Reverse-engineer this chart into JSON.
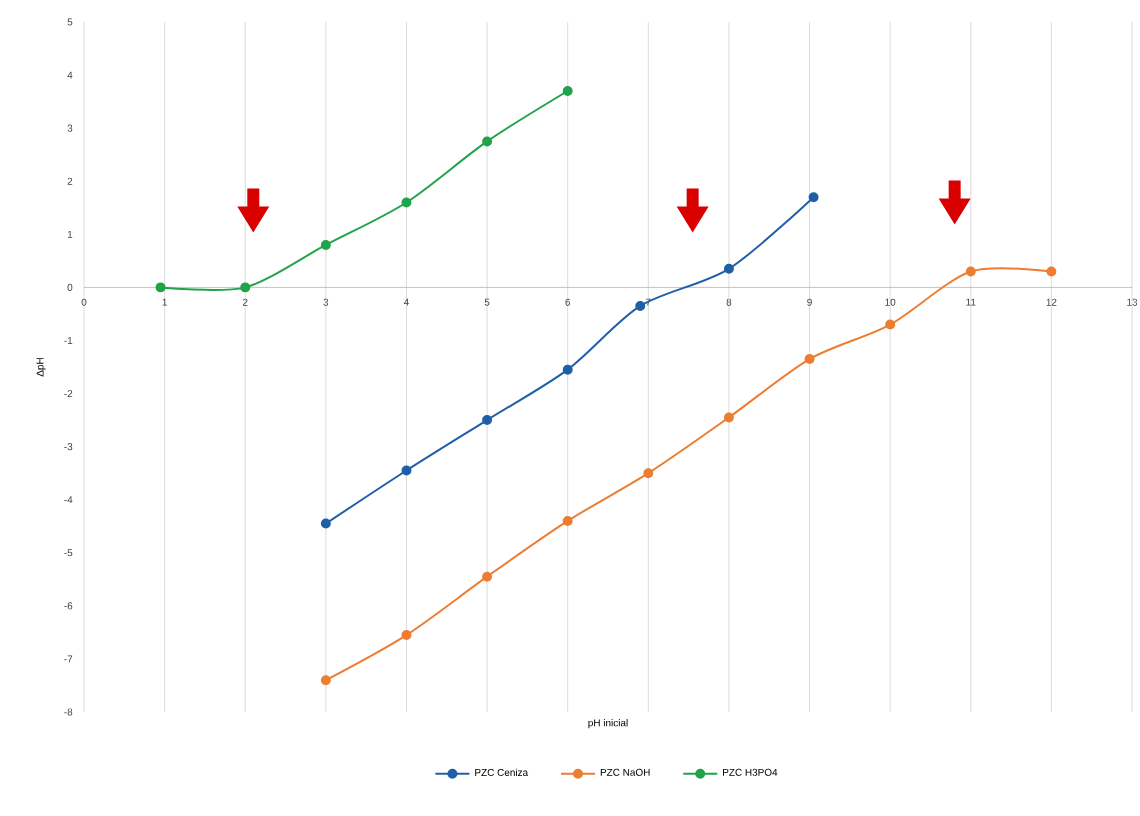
{
  "chart_data": {
    "type": "line",
    "xlabel": "pH inicial",
    "ylabel": "ΔpH",
    "xlim": [
      0,
      13
    ],
    "ylim": [
      -8,
      5
    ],
    "xticks": [
      0,
      1,
      2,
      3,
      4,
      5,
      6,
      7,
      8,
      9,
      10,
      11,
      12,
      13
    ],
    "yticks": [
      -8,
      -7,
      -6,
      -5,
      -4,
      -3,
      -2,
      -1,
      0,
      1,
      2,
      3,
      4,
      5
    ],
    "grid": "x",
    "legend": "bottom",
    "marker": "circle",
    "series": [
      {
        "name": "PZC Ceniza",
        "color": "#1f5fa8",
        "x": [
          3,
          4,
          5,
          6,
          6.9,
          8,
          9.05
        ],
        "values": [
          -4.45,
          -3.45,
          -2.5,
          -1.55,
          -0.35,
          0.35,
          1.7
        ]
      },
      {
        "name": "PZC NaOH",
        "color": "#ed7d31",
        "x": [
          3,
          4,
          5,
          6,
          7,
          8,
          9,
          10,
          11,
          12
        ],
        "values": [
          -7.4,
          -6.55,
          -5.45,
          -4.4,
          -3.5,
          -2.45,
          -1.35,
          -0.7,
          0.3,
          0.3
        ]
      },
      {
        "name": "PZC H3PO4",
        "color": "#21a34a",
        "x": [
          0.95,
          2,
          3,
          4,
          5,
          6
        ],
        "values": [
          0,
          0,
          0.8,
          1.6,
          2.75,
          3.7
        ]
      }
    ]
  }
}
